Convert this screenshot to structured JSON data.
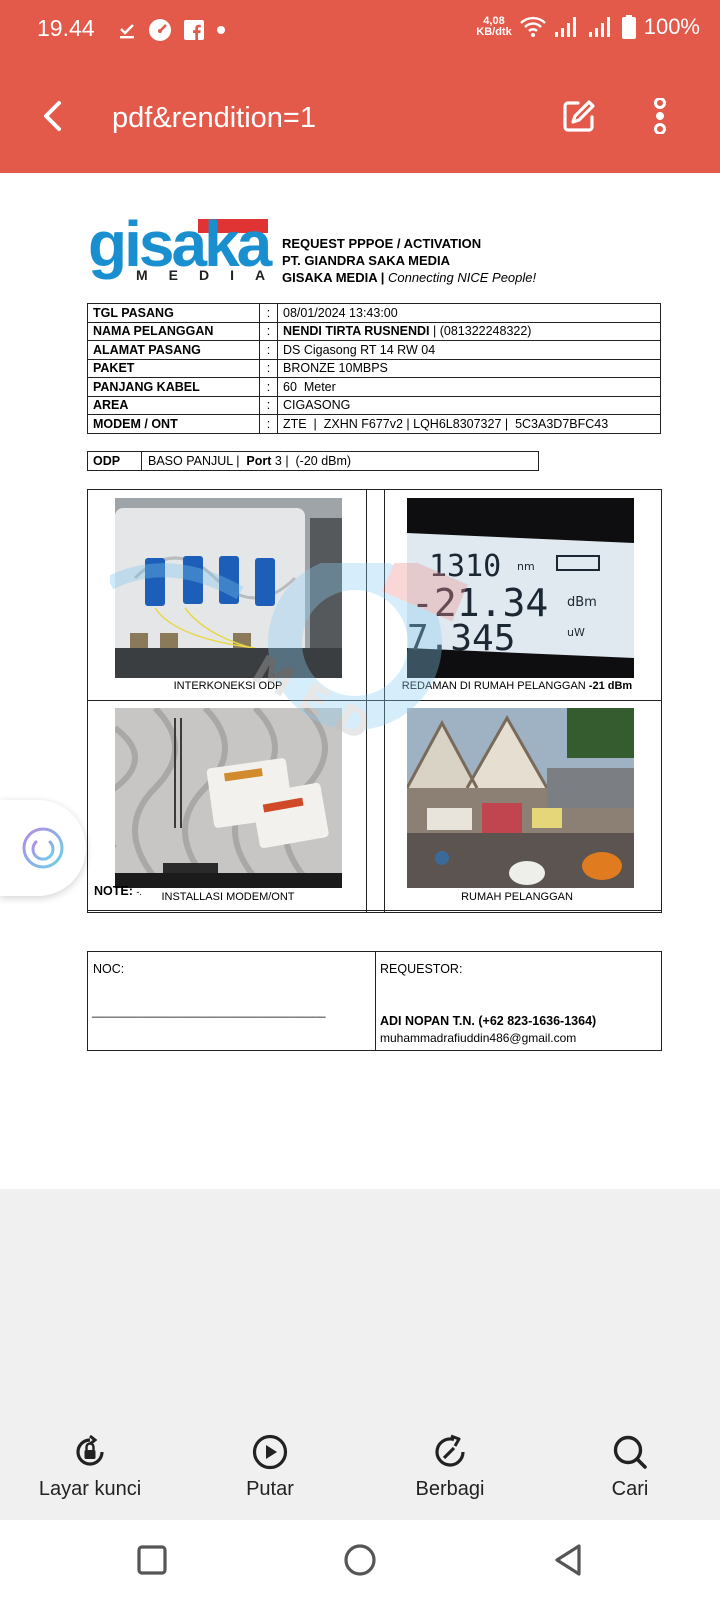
{
  "status_bar": {
    "time": "19.44",
    "net_speed_value": "4,08",
    "net_speed_unit": "KB/dtk",
    "battery": "100%"
  },
  "app_bar": {
    "title": "pdf&rendition=1"
  },
  "document": {
    "logo_word": "gisaka",
    "logo_sub": "MEDIA",
    "header_line1": "REQUEST PPPOE / ACTIVATION",
    "header_line2": "PT. GIANDRA SAKA MEDIA",
    "header_line3_bold": "GISAKA MEDIA |",
    "header_line3_italic": "Connecting NICE People!",
    "info_rows": [
      {
        "label": "TGL PASANG",
        "sep": ":",
        "value": "08/01/2024 13:43:00"
      },
      {
        "label": "NAMA PELANGGAN",
        "sep": ":",
        "value_bold": "NENDI TIRTA RUSNENDI",
        "value": " | (081322248322)"
      },
      {
        "label": "ALAMAT PASANG",
        "sep": ":",
        "value": "DS Cigasong RT 14 RW 04"
      },
      {
        "label": "PAKET",
        "sep": ":",
        "value": "BRONZE 10MBPS"
      },
      {
        "label": "PANJANG KABEL",
        "sep": ":",
        "value": "60  Meter"
      },
      {
        "label": "AREA",
        "sep": ":",
        "value": "CIGASONG"
      },
      {
        "label": "MODEM / ONT",
        "sep": ":",
        "value": "ZTE  |  ZXHN F677v2 | LQH6L8307327 |  5C3A3D7BFC43"
      }
    ],
    "odp": {
      "label": "ODP",
      "value_prefix": "BASO PANJUL |  ",
      "port_label": "Port",
      "value_suffix": " 3 |  (-20 dBm)"
    },
    "photos": {
      "cap1": "INTERKONEKSI ODP",
      "cap2_prefix": "REDAMAN DI RUMAH PELANGGAN ",
      "cap2_bold": "-21 dBm",
      "cap3": "INSTALLASI MODEM/ONT",
      "cap4": "RUMAH PELANGGAN",
      "meter_line1": "1310",
      "meter_unit1": "nm",
      "meter_line2": "-21.34",
      "meter_unit2": "dBm",
      "meter_line3": "7.345",
      "meter_unit3": "uW"
    },
    "note_label": "NOTE:",
    "note_value": "-.",
    "noc_label": "NOC:",
    "noc_line": "___________________________________",
    "requestor_label": "REQUESTOR:",
    "requestor_name": "ADI NOPAN T.N. (+62 823-1636-1364)",
    "requestor_email": "muhammadrafiuddin486@gmail.com"
  },
  "bottom_bar": [
    {
      "label": "Layar kunci",
      "icon": "lock-rotate-icon"
    },
    {
      "label": "Putar",
      "icon": "play-icon"
    },
    {
      "label": "Berbagi",
      "icon": "share-icon"
    },
    {
      "label": "Cari",
      "icon": "search-icon"
    }
  ],
  "colors": {
    "accent": "#e3594a",
    "logo_blue": "#1a8fd0",
    "logo_red": "#e03434"
  }
}
